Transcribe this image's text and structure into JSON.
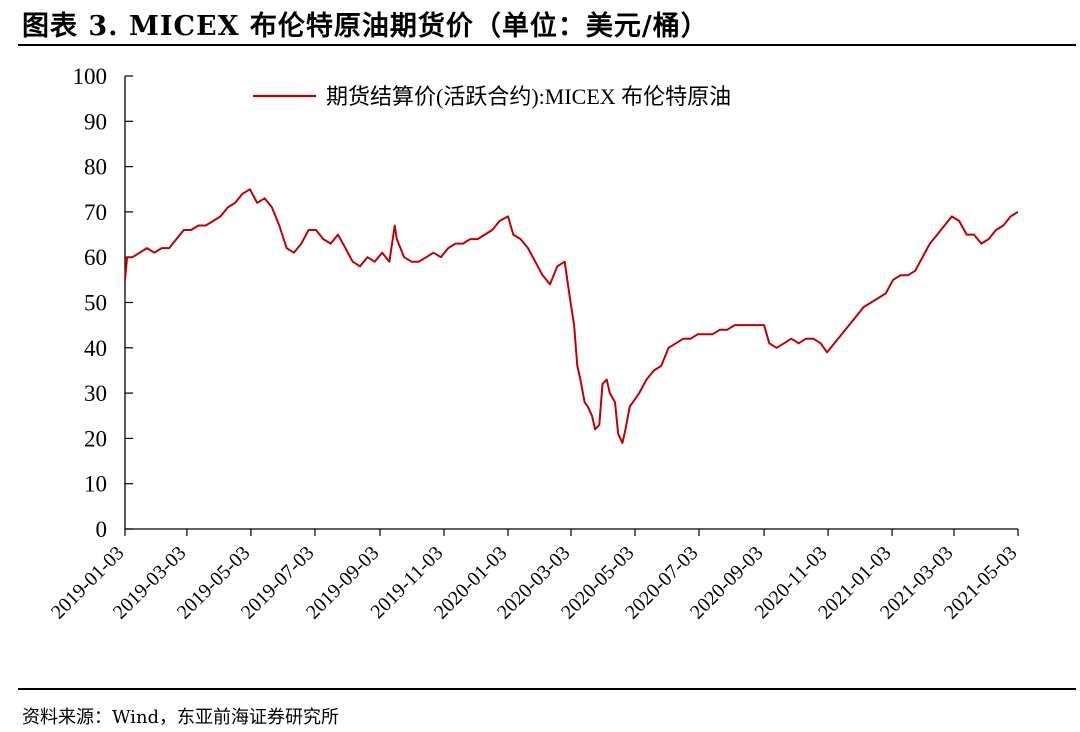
{
  "figure": {
    "title": "图表 3.   MICEX 布伦特原油期货价（单位：美元/桶）",
    "source": "资料来源：Wind，东亚前海证券研究所"
  },
  "chart_data": {
    "type": "line",
    "title": "",
    "xlabel": "",
    "ylabel": "",
    "ylim": [
      0,
      100
    ],
    "yticks": [
      0,
      10,
      20,
      30,
      40,
      50,
      60,
      70,
      80,
      90,
      100
    ],
    "xticks": [
      "2019-01-03",
      "2019-03-03",
      "2019-05-03",
      "2019-07-03",
      "2019-09-03",
      "2019-11-03",
      "2020-01-03",
      "2020-03-03",
      "2020-05-03",
      "2020-07-03",
      "2020-09-03",
      "2020-11-03",
      "2021-01-03",
      "2021-03-03",
      "2021-05-03"
    ],
    "xlim": [
      "2019-01-03",
      "2021-05-03"
    ],
    "grid": false,
    "legend": "top",
    "line_color": "#C00000",
    "series": [
      {
        "name": "期货结算价(活跃合约):MICEX 布伦特原油",
        "x": [
          "2019-01-03",
          "2019-01-05",
          "2019-01-10",
          "2019-01-17",
          "2019-01-24",
          "2019-01-31",
          "2019-02-07",
          "2019-02-14",
          "2019-02-21",
          "2019-02-28",
          "2019-03-07",
          "2019-03-14",
          "2019-03-21",
          "2019-03-28",
          "2019-04-04",
          "2019-04-11",
          "2019-04-18",
          "2019-04-25",
          "2019-05-02",
          "2019-05-09",
          "2019-05-16",
          "2019-05-23",
          "2019-05-30",
          "2019-06-06",
          "2019-06-13",
          "2019-06-20",
          "2019-06-27",
          "2019-07-04",
          "2019-07-11",
          "2019-07-18",
          "2019-07-25",
          "2019-08-01",
          "2019-08-08",
          "2019-08-15",
          "2019-08-22",
          "2019-08-29",
          "2019-09-05",
          "2019-09-12",
          "2019-09-17",
          "2019-09-19",
          "2019-09-26",
          "2019-10-03",
          "2019-10-10",
          "2019-10-17",
          "2019-10-24",
          "2019-10-31",
          "2019-11-07",
          "2019-11-14",
          "2019-11-21",
          "2019-11-28",
          "2019-12-05",
          "2019-12-12",
          "2019-12-19",
          "2019-12-26",
          "2020-01-03",
          "2020-01-08",
          "2020-01-15",
          "2020-01-22",
          "2020-01-29",
          "2020-02-05",
          "2020-02-12",
          "2020-02-19",
          "2020-02-26",
          "2020-03-02",
          "2020-03-06",
          "2020-03-09",
          "2020-03-12",
          "2020-03-16",
          "2020-03-19",
          "2020-03-23",
          "2020-03-26",
          "2020-03-30",
          "2020-04-02",
          "2020-04-06",
          "2020-04-09",
          "2020-04-14",
          "2020-04-17",
          "2020-04-21",
          "2020-04-24",
          "2020-04-28",
          "2020-05-01",
          "2020-05-07",
          "2020-05-14",
          "2020-05-21",
          "2020-05-28",
          "2020-06-04",
          "2020-06-11",
          "2020-06-18",
          "2020-06-25",
          "2020-07-02",
          "2020-07-09",
          "2020-07-16",
          "2020-07-23",
          "2020-07-30",
          "2020-08-06",
          "2020-08-13",
          "2020-08-20",
          "2020-08-27",
          "2020-09-03",
          "2020-09-08",
          "2020-09-15",
          "2020-09-22",
          "2020-09-29",
          "2020-10-06",
          "2020-10-13",
          "2020-10-20",
          "2020-10-27",
          "2020-11-02",
          "2020-11-09",
          "2020-11-16",
          "2020-11-23",
          "2020-11-30",
          "2020-12-07",
          "2020-12-14",
          "2020-12-21",
          "2020-12-28",
          "2021-01-04",
          "2021-01-11",
          "2021-01-18",
          "2021-01-25",
          "2021-02-01",
          "2021-02-08",
          "2021-02-15",
          "2021-02-22",
          "2021-03-01",
          "2021-03-08",
          "2021-03-15",
          "2021-03-22",
          "2021-03-29",
          "2021-04-05",
          "2021-04-12",
          "2021-04-19",
          "2021-04-26",
          "2021-05-03"
        ],
        "values": [
          55,
          60,
          60,
          61,
          62,
          61,
          62,
          62,
          64,
          66,
          66,
          67,
          67,
          68,
          69,
          71,
          72,
          74,
          75,
          72,
          73,
          71,
          67,
          62,
          61,
          63,
          66,
          66,
          64,
          63,
          65,
          62,
          59,
          58,
          60,
          59,
          61,
          59,
          67,
          64,
          60,
          59,
          59,
          60,
          61,
          60,
          62,
          63,
          63,
          64,
          64,
          65,
          66,
          68,
          69,
          65,
          64,
          62,
          59,
          56,
          54,
          58,
          59,
          51,
          45,
          36,
          33,
          28,
          27,
          25,
          22,
          23,
          32,
          33,
          30,
          28,
          21,
          19,
          22,
          27,
          28,
          30,
          33,
          35,
          36,
          40,
          41,
          42,
          42,
          43,
          43,
          43,
          44,
          44,
          45,
          45,
          45,
          45,
          45,
          41,
          40,
          41,
          42,
          41,
          42,
          42,
          41,
          39,
          41,
          43,
          45,
          47,
          49,
          50,
          51,
          52,
          55,
          56,
          56,
          57,
          60,
          63,
          65,
          67,
          69,
          68,
          65,
          65,
          63,
          64,
          66,
          67,
          69,
          70
        ]
      }
    ]
  }
}
